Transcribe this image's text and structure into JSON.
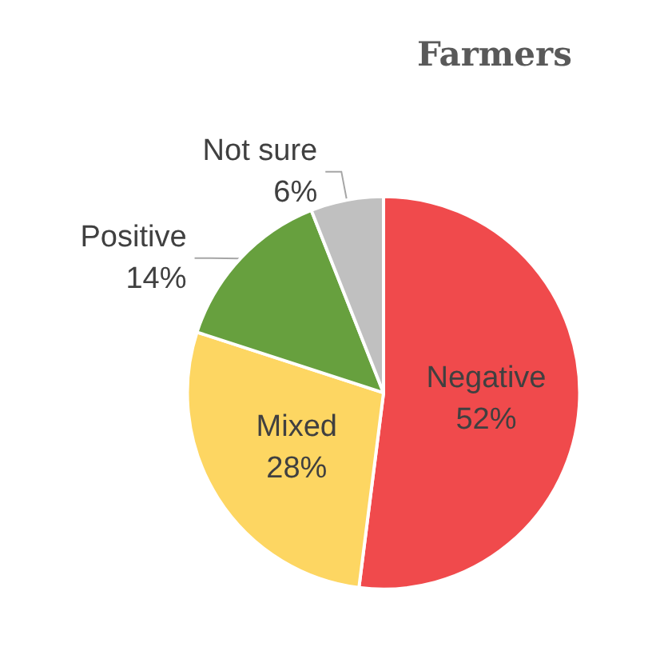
{
  "chart_data": {
    "type": "pie",
    "title": "Farmers",
    "categories": [
      "Negative",
      "Mixed",
      "Positive",
      "Not sure"
    ],
    "values": [
      52,
      28,
      14,
      6
    ],
    "colors": [
      "#f04a4c",
      "#fdd662",
      "#67a03e",
      "#c0c0c0"
    ],
    "value_labels": [
      "52%",
      "28%",
      "14%",
      "6%"
    ],
    "legend": false
  }
}
